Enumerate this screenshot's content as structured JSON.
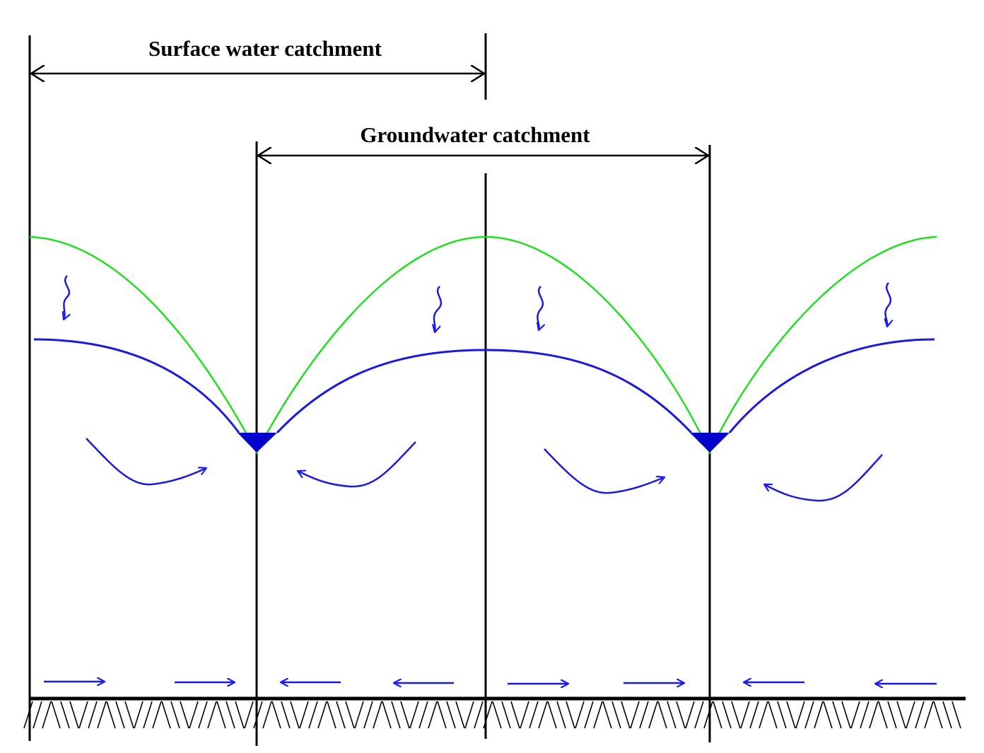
{
  "labels": {
    "surface_water_catchment": "Surface water catchment",
    "groundwater_catchment": "Groundwater catchment"
  }
}
